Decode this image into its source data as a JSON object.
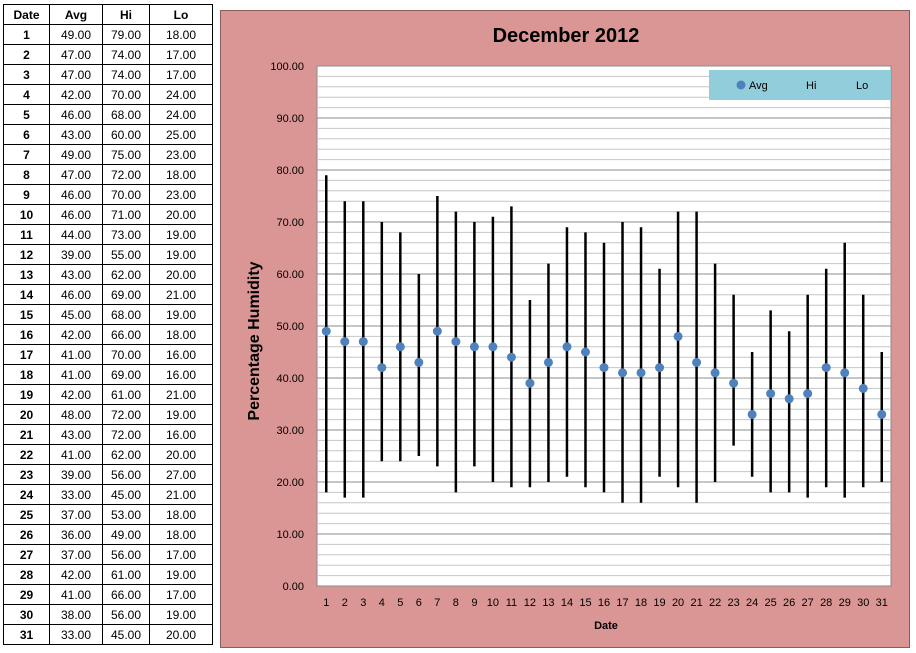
{
  "table": {
    "headers": [
      "Date",
      "Avg",
      "Hi",
      "Lo"
    ],
    "rows": [
      [
        "1",
        "49.00",
        "79.00",
        "18.00"
      ],
      [
        "2",
        "47.00",
        "74.00",
        "17.00"
      ],
      [
        "3",
        "47.00",
        "74.00",
        "17.00"
      ],
      [
        "4",
        "42.00",
        "70.00",
        "24.00"
      ],
      [
        "5",
        "46.00",
        "68.00",
        "24.00"
      ],
      [
        "6",
        "43.00",
        "60.00",
        "25.00"
      ],
      [
        "7",
        "49.00",
        "75.00",
        "23.00"
      ],
      [
        "8",
        "47.00",
        "72.00",
        "18.00"
      ],
      [
        "9",
        "46.00",
        "70.00",
        "23.00"
      ],
      [
        "10",
        "46.00",
        "71.00",
        "20.00"
      ],
      [
        "11",
        "44.00",
        "73.00",
        "19.00"
      ],
      [
        "12",
        "39.00",
        "55.00",
        "19.00"
      ],
      [
        "13",
        "43.00",
        "62.00",
        "20.00"
      ],
      [
        "14",
        "46.00",
        "69.00",
        "21.00"
      ],
      [
        "15",
        "45.00",
        "68.00",
        "19.00"
      ],
      [
        "16",
        "42.00",
        "66.00",
        "18.00"
      ],
      [
        "17",
        "41.00",
        "70.00",
        "16.00"
      ],
      [
        "18",
        "41.00",
        "69.00",
        "16.00"
      ],
      [
        "19",
        "42.00",
        "61.00",
        "21.00"
      ],
      [
        "20",
        "48.00",
        "72.00",
        "19.00"
      ],
      [
        "21",
        "43.00",
        "72.00",
        "16.00"
      ],
      [
        "22",
        "41.00",
        "62.00",
        "20.00"
      ],
      [
        "23",
        "39.00",
        "56.00",
        "27.00"
      ],
      [
        "24",
        "33.00",
        "45.00",
        "21.00"
      ],
      [
        "25",
        "37.00",
        "53.00",
        "18.00"
      ],
      [
        "26",
        "36.00",
        "49.00",
        "18.00"
      ],
      [
        "27",
        "37.00",
        "56.00",
        "17.00"
      ],
      [
        "28",
        "42.00",
        "61.00",
        "19.00"
      ],
      [
        "29",
        "41.00",
        "66.00",
        "17.00"
      ],
      [
        "30",
        "38.00",
        "56.00",
        "19.00"
      ],
      [
        "31",
        "33.00",
        "45.00",
        "20.00"
      ]
    ]
  },
  "chart_data": {
    "type": "scatter",
    "title": "December 2012",
    "xlabel": "Date",
    "ylabel": "Percentage Humidity",
    "x": [
      1,
      2,
      3,
      4,
      5,
      6,
      7,
      8,
      9,
      10,
      11,
      12,
      13,
      14,
      15,
      16,
      17,
      18,
      19,
      20,
      21,
      22,
      23,
      24,
      25,
      26,
      27,
      28,
      29,
      30,
      31
    ],
    "series": [
      {
        "name": "Avg",
        "values": [
          49,
          47,
          47,
          42,
          46,
          43,
          49,
          47,
          46,
          46,
          44,
          39,
          43,
          46,
          45,
          42,
          41,
          41,
          42,
          48,
          43,
          41,
          39,
          33,
          37,
          36,
          37,
          42,
          41,
          38,
          33
        ]
      },
      {
        "name": "Hi",
        "values": [
          79,
          74,
          74,
          70,
          68,
          60,
          75,
          72,
          70,
          71,
          73,
          55,
          62,
          69,
          68,
          66,
          70,
          69,
          61,
          72,
          72,
          62,
          56,
          45,
          53,
          49,
          56,
          61,
          66,
          56,
          45
        ]
      },
      {
        "name": "Lo",
        "values": [
          18,
          17,
          17,
          24,
          24,
          25,
          23,
          18,
          23,
          20,
          19,
          19,
          20,
          21,
          19,
          18,
          16,
          16,
          21,
          19,
          16,
          20,
          27,
          21,
          18,
          18,
          17,
          19,
          17,
          19,
          20
        ]
      }
    ],
    "ylim": [
      0,
      100
    ],
    "yticks": [
      "0.00",
      "10.00",
      "20.00",
      "30.00",
      "40.00",
      "50.00",
      "60.00",
      "70.00",
      "80.00",
      "90.00",
      "100.00"
    ],
    "minor_gridlines": true,
    "legend_position": "top-right",
    "colors": {
      "avg_marker": "#4F81BD",
      "hi_lo_bar": "#000000",
      "panel_bg": "#DA9694",
      "plot_bg": "#FFFFFF",
      "legend_bg": "#92CDDC"
    }
  }
}
